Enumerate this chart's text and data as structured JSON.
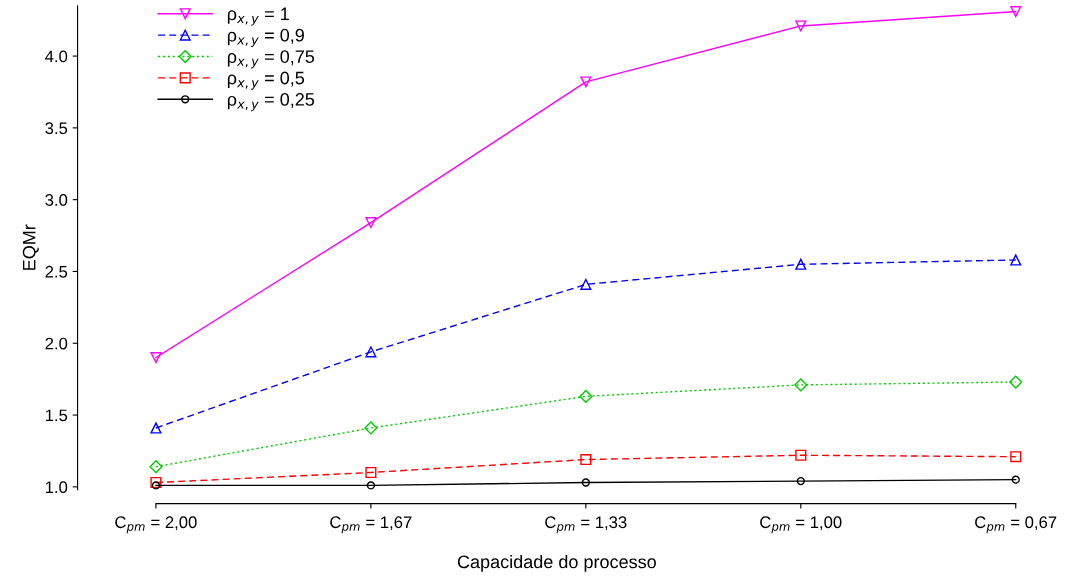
{
  "chart_data": {
    "type": "line",
    "xlabel": "Capacidade do processo",
    "ylabel": "EQMr",
    "categories": [
      "C$_{pm}$ = 2,00",
      "C$_{pm}$ = 1,67",
      "C$_{pm}$ = 1,33",
      "C$_{pm}$ = 1,00",
      "C$_{pm}$ = 0,67"
    ],
    "series": [
      {
        "name": "ρ$_{x,y}$ = 1",
        "color": "#ff00ff",
        "marker": "triangle_down",
        "line_style": "solid",
        "values": [
          1.9,
          2.84,
          3.82,
          4.21,
          4.31
        ]
      },
      {
        "name": "ρ$_{x,y}$ = 0,9",
        "color": "#0000ff",
        "marker": "triangle",
        "line_style": "dashed",
        "values": [
          1.41,
          1.94,
          2.41,
          2.55,
          2.58
        ]
      },
      {
        "name": "ρ$_{x,y}$ = 0,75",
        "color": "#00cc00",
        "marker": "diamond",
        "line_style": "dotted",
        "values": [
          1.14,
          1.41,
          1.63,
          1.71,
          1.73
        ]
      },
      {
        "name": "ρ$_{x,y}$ = 0,5",
        "color": "#ff0000",
        "marker": "square",
        "line_style": "dashed",
        "values": [
          1.03,
          1.1,
          1.19,
          1.22,
          1.21
        ]
      },
      {
        "name": "ρ$_{x,y}$ = 0,25",
        "color": "#000000",
        "marker": "circle",
        "line_style": "solid",
        "values": [
          1.01,
          1.01,
          1.03,
          1.04,
          1.05
        ]
      }
    ],
    "ylim": [
      0.98,
      4.35
    ],
    "yticks": [
      {
        "value": 1,
        "label": "1.0"
      },
      {
        "value": 1.5,
        "label": "1.5"
      },
      {
        "value": 2,
        "label": "2.0"
      },
      {
        "value": 2.5,
        "label": "2.5"
      },
      {
        "value": 3,
        "label": "3.0"
      },
      {
        "value": 3.5,
        "label": "3.5"
      },
      {
        "value": 4,
        "label": "4.0"
      }
    ],
    "grid": false,
    "legend": "top left"
  }
}
